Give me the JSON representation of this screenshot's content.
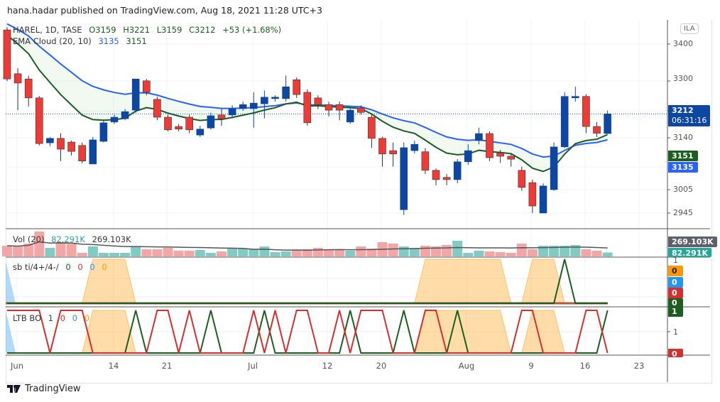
{
  "published": "hana.hadar published on TradingView.com, Aug 18, 2021 11:28 UTC+3",
  "symbol": {
    "name": "HAREL, 1D, TASE",
    "open": "O3159",
    "high": "H3221",
    "low": "L3159",
    "close": "C3212",
    "change": "+53 (+1.68%)"
  },
  "ema": {
    "label": "EMA Cloud (20, 10)",
    "v1": "3135",
    "v2": "3151"
  },
  "vol": {
    "label": "Vol (20)",
    "v1": "82.291K",
    "v2": "269.103K"
  },
  "sb": {
    "label": "sb ti/4+/4-/",
    "vals": [
      "0",
      "0",
      "0",
      "0"
    ]
  },
  "ltb": {
    "label": "LTB BO",
    "vals": [
      "1",
      "0",
      "0",
      "0"
    ]
  },
  "currency": "ILA",
  "price_axis": [
    "3400",
    "3300",
    "3140",
    "3005",
    "2945"
  ],
  "price_tags": {
    "last": "3212",
    "countdown": "06:31:16",
    "ema_fast": "3151",
    "ema_slow": "3135",
    "vol_ma": "269.103K",
    "vol": "82.291K"
  },
  "sb_axis": {
    "top": "1",
    "t0": "0",
    "t1": "0",
    "t2": "0",
    "t3": "0"
  },
  "ltb_axis": {
    "top": "1",
    "mid": "1",
    "bot": "0"
  },
  "dates": [
    "Jun",
    "14",
    "21",
    "Jul",
    "12",
    "20",
    "Aug",
    "9",
    "16",
    "23"
  ],
  "brand": "TradingView",
  "colors": {
    "up": "#0d47a1",
    "down": "#ef3b36",
    "ema_slow": "#2962ff",
    "ema_fast": "#1b5e20",
    "orange": "#ff9800",
    "red": "#d32f2f",
    "green": "#1b5e20"
  },
  "candles": [
    [
      3438,
      3445,
      3300,
      3306
    ],
    [
      3320,
      3335,
      3222,
      3295
    ],
    [
      3306,
      3315,
      3232,
      3255
    ],
    [
      3255,
      3260,
      3127,
      3132
    ],
    [
      3134,
      3150,
      3125,
      3146
    ],
    [
      3146,
      3160,
      3085,
      3117
    ],
    [
      3136,
      3140,
      3100,
      3111
    ],
    [
      3127,
      3135,
      3079,
      3085
    ],
    [
      3077,
      3150,
      3077,
      3142
    ],
    [
      3138,
      3195,
      3135,
      3188
    ],
    [
      3190,
      3210,
      3185,
      3203
    ],
    [
      3199,
      3225,
      3195,
      3218
    ],
    [
      3222,
      3306,
      3215,
      3306
    ],
    [
      3301,
      3306,
      3262,
      3270
    ],
    [
      3251,
      3258,
      3195,
      3203
    ],
    [
      3203,
      3210,
      3165,
      3169
    ],
    [
      3178,
      3185,
      3165,
      3171
    ],
    [
      3203,
      3210,
      3160,
      3169
    ],
    [
      3155,
      3180,
      3150,
      3171
    ],
    [
      3174,
      3215,
      3170,
      3207
    ],
    [
      3209,
      3225,
      3180,
      3199
    ],
    [
      3209,
      3235,
      3200,
      3226
    ],
    [
      3226,
      3245,
      3220,
      3237
    ],
    [
      3226,
      3270,
      3175,
      3241
    ],
    [
      3239,
      3275,
      3200,
      3257
    ],
    [
      3253,
      3262,
      3245,
      3257
    ],
    [
      3253,
      3315,
      3245,
      3285
    ],
    [
      3304,
      3310,
      3255,
      3264
    ],
    [
      3270,
      3278,
      3180,
      3188
    ],
    [
      3255,
      3262,
      3225,
      3237
    ],
    [
      3237,
      3245,
      3205,
      3222
    ],
    [
      3237,
      3245,
      3195,
      3222
    ],
    [
      3190,
      3230,
      3185,
      3222
    ],
    [
      3228,
      3235,
      3210,
      3216
    ],
    [
      3203,
      3210,
      3120,
      3146
    ],
    [
      3146,
      3150,
      3070,
      3104
    ],
    [
      3113,
      3135,
      3070,
      3104
    ],
    [
      2954,
      3135,
      2940,
      3121
    ],
    [
      3113,
      3140,
      3105,
      3130
    ],
    [
      3110,
      3120,
      3050,
      3060
    ],
    [
      3060,
      3065,
      3020,
      3035
    ],
    [
      3041,
      3050,
      3020,
      3035
    ],
    [
      3035,
      3090,
      3025,
      3083
    ],
    [
      3083,
      3130,
      3075,
      3113
    ],
    [
      3140,
      3175,
      3130,
      3159
    ],
    [
      3159,
      3165,
      3085,
      3094
    ],
    [
      3107,
      3115,
      3080,
      3098
    ],
    [
      3098,
      3105,
      3070,
      3090
    ],
    [
      3060,
      3070,
      3005,
      3014
    ],
    [
      3027,
      3035,
      2945,
      2964
    ],
    [
      2945,
      3025,
      2945,
      3018
    ],
    [
      3008,
      3135,
      3005,
      3123
    ],
    [
      3123,
      3270,
      3120,
      3259
    ],
    [
      3255,
      3285,
      3245,
      3259
    ],
    [
      3259,
      3265,
      3160,
      3178
    ],
    [
      3178,
      3190,
      3150,
      3160
    ],
    [
      3159,
      3221,
      3159,
      3212
    ]
  ],
  "volumes_k": [
    225,
    210,
    270,
    525,
    180,
    300,
    270,
    75,
    210,
    75,
    75,
    75,
    210,
    150,
    150,
    180,
    120,
    120,
    135,
    75,
    105,
    180,
    165,
    150,
    210,
    90,
    105,
    120,
    150,
    180,
    150,
    150,
    120,
    210,
    165,
    300,
    270,
    210,
    180,
    225,
    210,
    240,
    330,
    75,
    120,
    105,
    90,
    75,
    270,
    150,
    225,
    225,
    225,
    240,
    150,
    120,
    82
  ],
  "sb_orange": [
    0,
    0,
    0,
    0,
    0,
    0,
    0,
    0,
    1,
    1,
    1,
    1,
    0,
    0,
    0,
    0,
    0,
    0,
    0,
    0,
    0,
    0,
    0,
    0,
    0,
    0,
    0,
    0,
    0,
    0,
    0,
    0,
    0,
    0,
    0,
    0,
    0,
    0,
    0,
    1,
    1,
    1,
    1,
    1,
    1,
    1,
    1,
    0,
    0,
    1,
    1,
    1,
    0,
    0,
    0,
    0,
    0
  ],
  "sb_green": [
    0,
    0,
    0,
    0,
    0,
    0,
    0,
    0,
    0,
    0,
    0,
    0,
    0,
    0,
    0,
    0,
    0,
    0,
    0,
    0,
    0,
    0,
    0,
    0,
    0,
    0,
    0,
    0,
    0,
    0,
    0,
    0,
    0,
    0,
    0,
    0,
    0,
    0,
    0,
    0,
    0,
    0,
    0,
    0,
    0,
    0,
    0,
    0,
    0,
    0,
    0,
    0,
    1,
    0,
    0,
    0,
    0
  ],
  "ltb_red": [
    1,
    1,
    1,
    1,
    0,
    1,
    1,
    1,
    0,
    0,
    0,
    0,
    0,
    0,
    1,
    1,
    0,
    1,
    0,
    0,
    0,
    0,
    0,
    1,
    0,
    1,
    0,
    1,
    1,
    0,
    0,
    1,
    0,
    1,
    1,
    1,
    0,
    0,
    0,
    1,
    1,
    0,
    0,
    0,
    0,
    0,
    0,
    0,
    1,
    1,
    0,
    0,
    0,
    0,
    1,
    1,
    0
  ],
  "ltb_green": [
    0,
    0,
    0,
    0,
    0,
    0,
    0,
    0,
    0,
    0,
    0,
    0,
    1,
    0,
    0,
    0,
    0,
    0,
    0,
    1,
    0,
    0,
    0,
    0,
    1,
    0,
    0,
    0,
    0,
    0,
    0,
    0,
    1,
    0,
    0,
    0,
    0,
    1,
    0,
    0,
    0,
    0,
    1,
    0,
    0,
    0,
    0,
    0,
    0,
    0,
    0,
    0,
    0,
    0,
    0,
    0,
    1
  ]
}
